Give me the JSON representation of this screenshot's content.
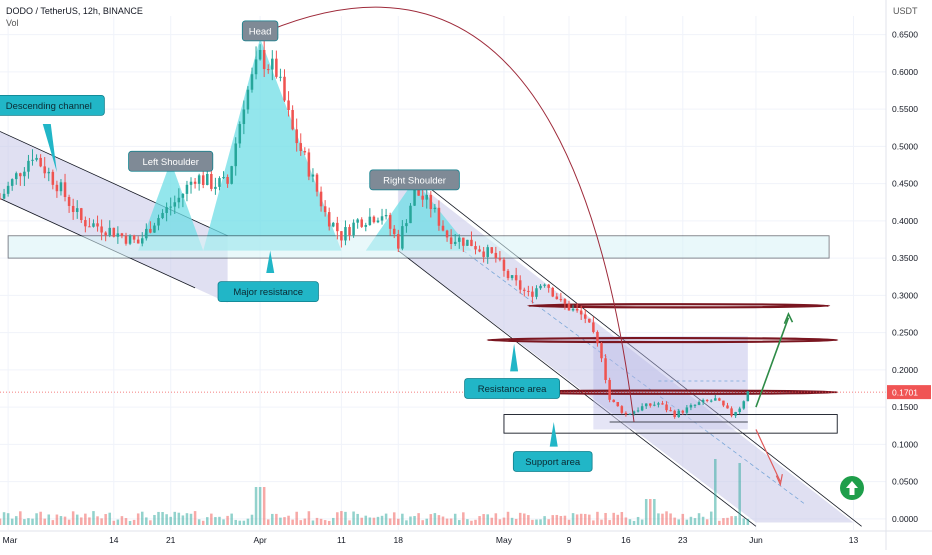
{
  "header": {
    "symbol_line": "DODO / TetherUS, 12h, BINANCE",
    "volume_label": "Vol",
    "currency": "USDT"
  },
  "theme": {
    "up_color": "#26a69a",
    "down_color": "#ef5350",
    "pattern_fill": "#6fdde6",
    "channel_fill": "#c7c7e8",
    "label_fill": "#21b6c7",
    "dark_red": "#7a1620",
    "arrow_green": "#2e8b47",
    "arrow_red": "#e05a5a",
    "price_tag": "#f05454"
  },
  "up_icon": "arrow-up-circle-icon",
  "chart_data": {
    "type": "candlestick",
    "y_axis": {
      "ticks": [
        0.0,
        0.05,
        0.1,
        0.15,
        0.2,
        0.25,
        0.3,
        0.35,
        0.4,
        0.45,
        0.5,
        0.55,
        0.6,
        0.65
      ],
      "tick_labels": [
        "0.0000",
        "0.0500",
        "0.1000",
        "0.1500",
        "0.2000",
        "0.2500",
        "0.3000",
        "0.3500",
        "0.4000",
        "0.4500",
        "0.5000",
        "0.5500",
        "0.6000",
        "0.6500"
      ],
      "range": [
        -0.015,
        0.675
      ],
      "position": "right"
    },
    "x_axis": {
      "labels": [
        "Mar",
        "14",
        "21",
        "Apr",
        "11",
        "18",
        "May",
        "9",
        "16",
        "23",
        "Jun",
        "13"
      ],
      "label_dates": [
        "2021-03-01",
        "2021-03-14",
        "2021-03-21",
        "2021-04-01",
        "2021-04-11",
        "2021-04-18",
        "2021-05-01",
        "2021-05-09",
        "2021-05-16",
        "2021-05-23",
        "2021-06-01",
        "2021-06-13"
      ],
      "range": [
        "2021-02-28",
        "2021-06-17"
      ]
    },
    "current_price": {
      "value": 0.1701,
      "label": "0.1701"
    },
    "price_anchors": [
      [
        "2021-02-28",
        0.43
      ],
      [
        "2021-03-02",
        0.46
      ],
      [
        "2021-03-04",
        0.49
      ],
      [
        "2021-03-07",
        0.45
      ],
      [
        "2021-03-10",
        0.4
      ],
      [
        "2021-03-13",
        0.39
      ],
      [
        "2021-03-17",
        0.37
      ],
      [
        "2021-03-19",
        0.4
      ],
      [
        "2021-03-22",
        0.43
      ],
      [
        "2021-03-24",
        0.46
      ],
      [
        "2021-03-26",
        0.45
      ],
      [
        "2021-03-28",
        0.45
      ],
      [
        "2021-03-30",
        0.56
      ],
      [
        "2021-04-01",
        0.62
      ],
      [
        "2021-04-03",
        0.6
      ],
      [
        "2021-04-05",
        0.52
      ],
      [
        "2021-04-07",
        0.47
      ],
      [
        "2021-04-09",
        0.41
      ],
      [
        "2021-04-11",
        0.38
      ],
      [
        "2021-04-13",
        0.4
      ],
      [
        "2021-04-16",
        0.41
      ],
      [
        "2021-04-18",
        0.37
      ],
      [
        "2021-04-20",
        0.44
      ],
      [
        "2021-04-22",
        0.42
      ],
      [
        "2021-04-24",
        0.38
      ],
      [
        "2021-04-27",
        0.37
      ],
      [
        "2021-04-30",
        0.35
      ],
      [
        "2021-05-01",
        0.33
      ],
      [
        "2021-05-04",
        0.3
      ],
      [
        "2021-05-06",
        0.32
      ],
      [
        "2021-05-08",
        0.29
      ],
      [
        "2021-05-11",
        0.27
      ],
      [
        "2021-05-13",
        0.22
      ],
      [
        "2021-05-14",
        0.16
      ],
      [
        "2021-05-16",
        0.14
      ],
      [
        "2021-05-18",
        0.15
      ],
      [
        "2021-05-20",
        0.155
      ],
      [
        "2021-05-22",
        0.14
      ],
      [
        "2021-05-25",
        0.155
      ],
      [
        "2021-05-27",
        0.16
      ],
      [
        "2021-05-29",
        0.14
      ],
      [
        "2021-05-30",
        0.15
      ],
      [
        "2021-05-31",
        0.17
      ]
    ],
    "volume_note": "Volume histogram at bottom; tall spikes near 2021-05-27 and 2021-05-30",
    "annotations": [
      {
        "text": "Head",
        "date": "2021-04-01",
        "price": 0.655
      },
      {
        "text": "Left Shoulder",
        "date": "2021-03-21",
        "price": 0.48
      },
      {
        "text": "Right Shoulder",
        "date": "2021-04-20",
        "price": 0.455
      },
      {
        "text": "Descending channel",
        "date": "2021-03-06",
        "price": 0.555
      },
      {
        "text": "Major resistance",
        "date": "2021-04-02",
        "price": 0.305
      },
      {
        "text": "Resistance area",
        "date": "2021-05-02",
        "price": 0.175
      },
      {
        "text": "Support area",
        "date": "2021-05-07",
        "price": 0.077
      }
    ],
    "levels": {
      "major_resistance_zone": [
        0.35,
        0.38
      ],
      "support_zone": [
        0.115,
        0.14
      ],
      "resistance_lines": [
        0.286,
        0.24,
        0.17
      ]
    }
  }
}
